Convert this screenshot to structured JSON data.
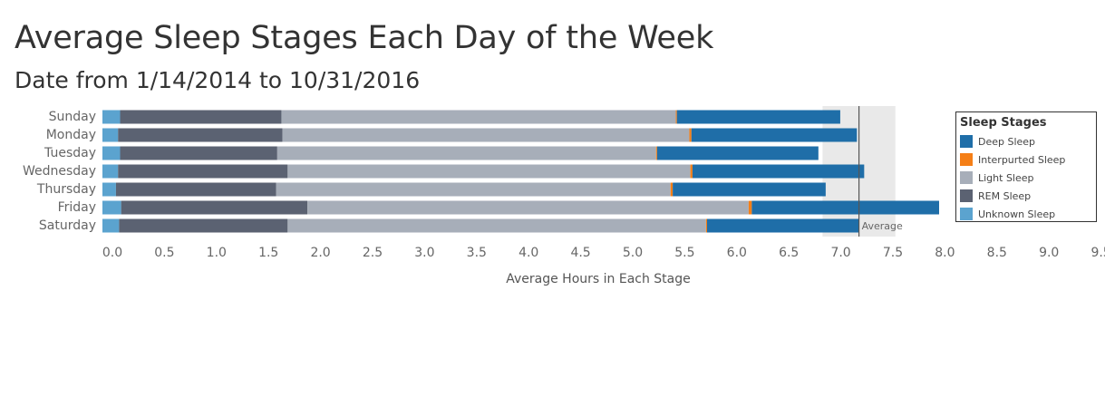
{
  "title": "Average Sleep Stages Each Day of the Week",
  "subtitle": "Date from 1/14/2014 to 10/31/2016",
  "chart_data": {
    "type": "bar",
    "orientation": "horizontal",
    "stacked": true,
    "categories": [
      "Sunday",
      "Monday",
      "Tuesday",
      "Wednesday",
      "Thursday",
      "Friday",
      "Saturday"
    ],
    "series": [
      {
        "name": "Unknown Sleep",
        "color": "#5ba3cf",
        "values": [
          0.17,
          0.15,
          0.17,
          0.15,
          0.13,
          0.18,
          0.16
        ]
      },
      {
        "name": "REM Sleep",
        "color": "#5b6272",
        "values": [
          1.55,
          1.58,
          1.51,
          1.63,
          1.54,
          1.79,
          1.62
        ]
      },
      {
        "name": "Light Sleep",
        "color": "#a7aeb9",
        "values": [
          3.79,
          3.91,
          3.64,
          3.87,
          3.79,
          4.24,
          4.02
        ]
      },
      {
        "name": "Interpurted Sleep",
        "color": "#f57f17",
        "values": [
          0.01,
          0.02,
          0.01,
          0.02,
          0.02,
          0.03,
          0.01
        ]
      },
      {
        "name": "Deep Sleep",
        "color": "#1f6ea8",
        "values": [
          1.57,
          1.59,
          1.55,
          1.65,
          1.47,
          1.8,
          1.46
        ]
      }
    ],
    "xlabel": "Average Hours in Each Stage",
    "xlim": [
      0,
      9.5
    ],
    "xticks": [
      "0.0",
      "0.5",
      "1.0",
      "1.5",
      "2.0",
      "2.5",
      "3.0",
      "3.5",
      "4.0",
      "4.5",
      "5.0",
      "5.5",
      "6.0",
      "6.5",
      "7.0",
      "7.5",
      "8.0",
      "8.5",
      "9.0",
      "9.5"
    ],
    "reference_line": {
      "label": "Average",
      "value": 7.27
    },
    "reference_band": [
      6.92,
      7.62
    ],
    "legend": {
      "title": "Sleep Stages",
      "position": "right",
      "items": [
        "Deep Sleep",
        "Interpurted Sleep",
        "Light Sleep",
        "REM Sleep",
        "Unknown Sleep"
      ]
    }
  }
}
